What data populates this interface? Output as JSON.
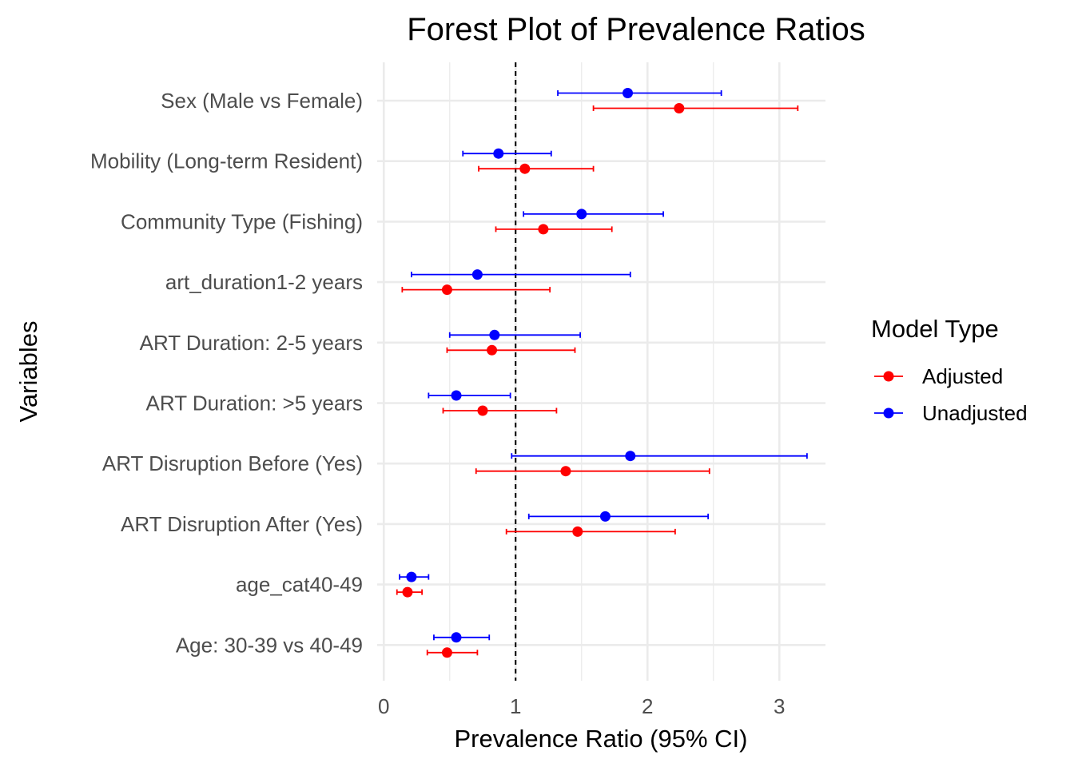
{
  "chart_data": {
    "type": "scatter",
    "subtype": "forest-plot",
    "title": "Forest Plot of Prevalence Ratios",
    "xlabel": "Prevalence Ratio (95% CI)",
    "ylabel": "Variables",
    "xlim": [
      -0.05,
      3.35
    ],
    "xticks": [
      0,
      1,
      2,
      3
    ],
    "reference_line": 1,
    "grid": true,
    "legend": {
      "title": "Model Type",
      "placement": "right"
    },
    "categories": [
      "Sex (Male vs Female)",
      "Mobility (Long-term Resident)",
      "Community Type (Fishing)",
      "art_duration1-2 years",
      "ART Duration: 2-5 years",
      "ART Duration: >5 years",
      "ART Disruption Before (Yes)",
      "ART Disruption After (Yes)",
      "age_cat40-49",
      "Age: 30-39 vs 40-49"
    ],
    "series": [
      {
        "name": "Adjusted",
        "color": "#ff0000",
        "estimate": [
          2.24,
          1.07,
          1.21,
          0.48,
          0.82,
          0.75,
          1.38,
          1.47,
          0.18,
          0.48
        ],
        "lower": [
          1.59,
          0.72,
          0.85,
          0.14,
          0.48,
          0.45,
          0.7,
          0.93,
          0.1,
          0.33
        ],
        "upper": [
          3.14,
          1.59,
          1.73,
          1.26,
          1.45,
          1.31,
          2.47,
          2.21,
          0.29,
          0.71
        ]
      },
      {
        "name": "Unadjusted",
        "color": "#0000ff",
        "estimate": [
          1.85,
          0.87,
          1.5,
          0.71,
          0.84,
          0.55,
          1.87,
          1.68,
          0.21,
          0.55
        ],
        "lower": [
          1.32,
          0.6,
          1.06,
          0.21,
          0.5,
          0.34,
          0.97,
          1.1,
          0.12,
          0.38
        ],
        "upper": [
          2.56,
          1.27,
          2.12,
          1.87,
          1.49,
          0.96,
          3.21,
          2.46,
          0.34,
          0.8
        ]
      }
    ]
  }
}
